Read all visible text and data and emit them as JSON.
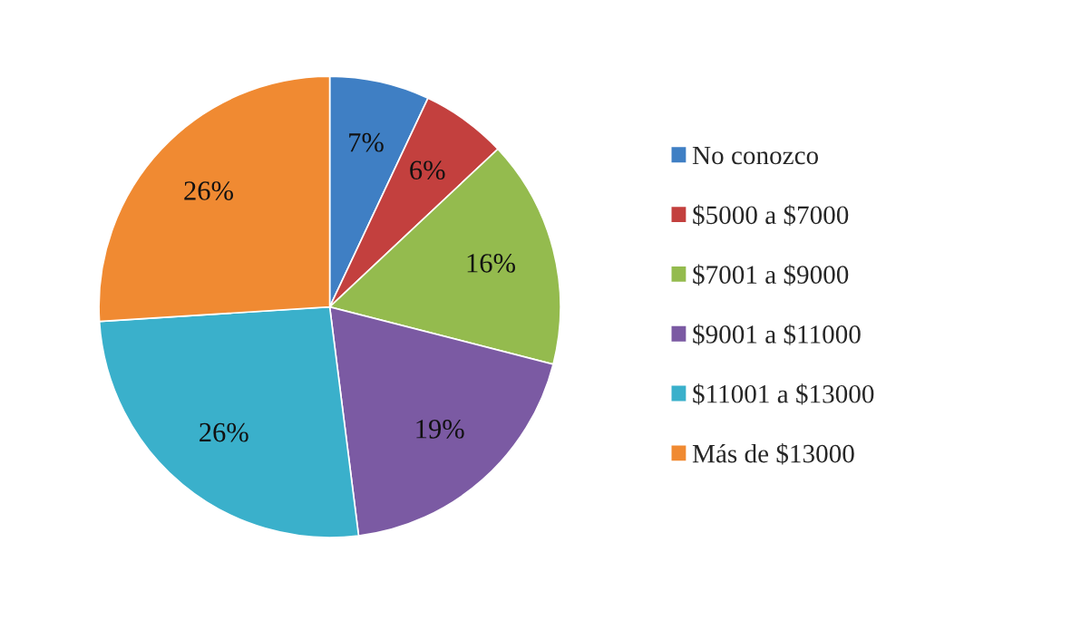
{
  "chart_data": {
    "type": "pie",
    "categories": [
      "No conozco",
      "$5000 a $7000",
      "$7001 a $9000",
      "$9001 a $11000",
      "$11001 a $13000",
      "Más de $13000"
    ],
    "values": [
      7,
      6,
      16,
      19,
      26,
      26
    ],
    "colors": [
      "#3f7fc4",
      "#c3403e",
      "#94bb4e",
      "#7b5aa3",
      "#3ab0cb",
      "#f08a32"
    ],
    "value_labels": [
      "7%",
      "6%",
      "16%",
      "19%",
      "26%",
      "26%"
    ],
    "legend": "right"
  }
}
